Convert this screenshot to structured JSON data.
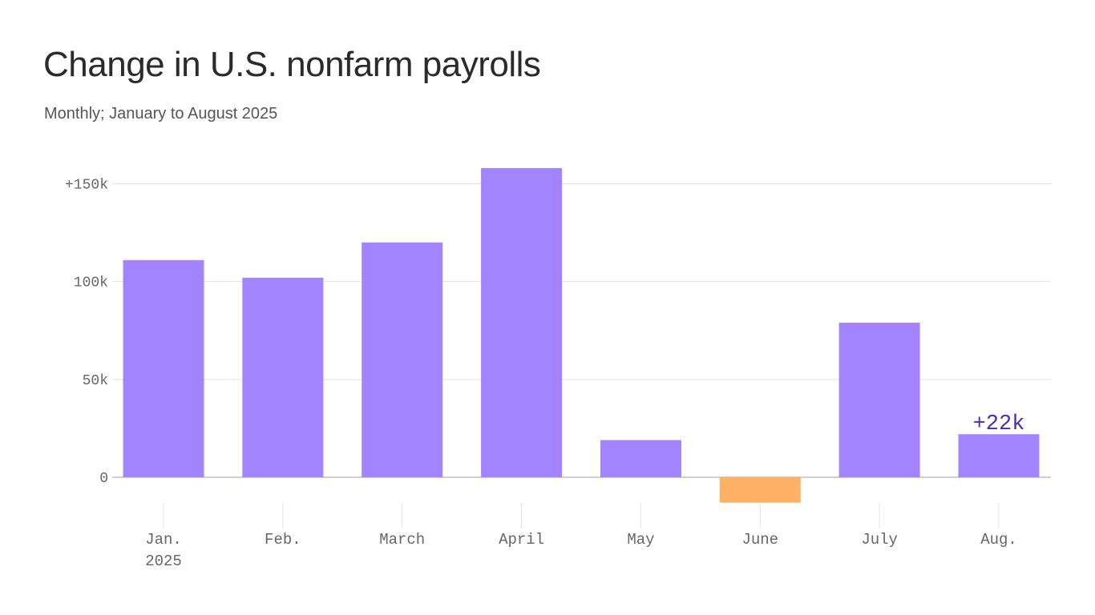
{
  "title": "Change in U.S. nonfarm payrolls",
  "subtitle": "Monthly; January to August 2025",
  "colors": {
    "positive": "#a384ff",
    "negative": "#ffb166",
    "label": "#4a2bc2",
    "grid": "#e3e3e3",
    "axis": "#bdbdbd"
  },
  "chart_data": {
    "type": "bar",
    "title": "Change in U.S. nonfarm payrolls",
    "subtitle": "Monthly; January to August 2025",
    "categories": [
      "Jan.",
      "Feb.",
      "March",
      "April",
      "May",
      "June",
      "July",
      "Aug."
    ],
    "category_sublabels": [
      "2025",
      "",
      "",
      "",
      "",
      "",
      "",
      ""
    ],
    "values": [
      111000,
      102000,
      120000,
      158000,
      19000,
      -13000,
      79000,
      22000
    ],
    "ylim": [
      -13000,
      158000
    ],
    "yticks": [
      {
        "value": 0,
        "label": "0"
      },
      {
        "value": 50000,
        "label": "50k"
      },
      {
        "value": 100000,
        "label": "100k"
      },
      {
        "value": 150000,
        "label": "+150k"
      }
    ],
    "annotations": [
      {
        "category": "Aug.",
        "text": "+22k"
      }
    ],
    "grid": true,
    "legend": "none"
  }
}
